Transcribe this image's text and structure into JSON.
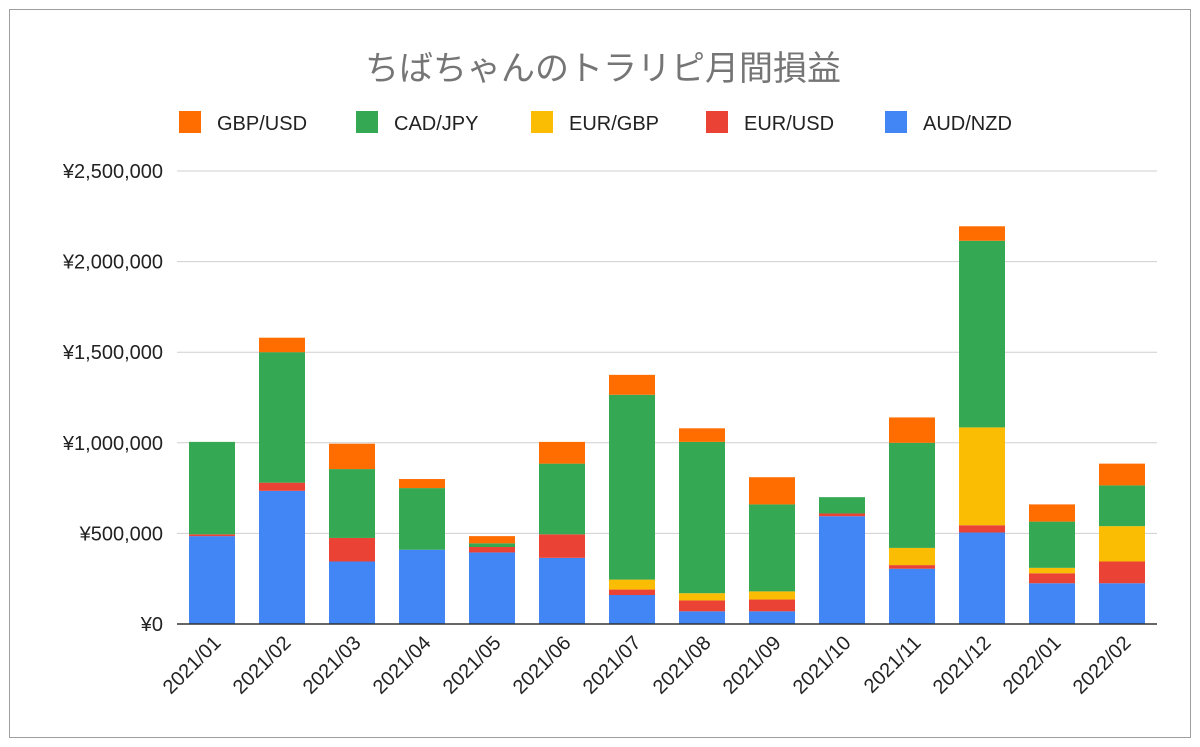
{
  "chart_data": {
    "type": "bar",
    "stacked": true,
    "title": "ちばちゃんのトラリピ月間損益",
    "xlabel": "",
    "ylabel": "",
    "legend_position": "top",
    "grid": true,
    "ylim": [
      0,
      2500000
    ],
    "yticks": [
      0,
      500000,
      1000000,
      1500000,
      2000000,
      2500000
    ],
    "ytick_labels": [
      "¥0",
      "¥500,000",
      "¥1,000,000",
      "¥1,500,000",
      "¥2,000,000",
      "¥2,500,000"
    ],
    "categories": [
      "2021/01",
      "2021/02",
      "2021/03",
      "2021/04",
      "2021/05",
      "2021/06",
      "2021/07",
      "2021/08",
      "2021/09",
      "2021/10",
      "2021/11",
      "2021/12",
      "2022/01",
      "2022/02"
    ],
    "legend_order": [
      "GBP/USD",
      "CAD/JPY",
      "EUR/GBP",
      "EUR/USD",
      "AUD/NZD"
    ],
    "series": [
      {
        "name": "AUD/NZD",
        "color": "#4285F4",
        "values": [
          485000,
          735000,
          345000,
          410000,
          395000,
          365000,
          160000,
          70000,
          70000,
          595000,
          305000,
          505000,
          225000,
          225000
        ]
      },
      {
        "name": "EUR/USD",
        "color": "#EA4335",
        "values": [
          10000,
          45000,
          130000,
          0,
          30000,
          130000,
          30000,
          60000,
          65000,
          15000,
          20000,
          40000,
          55000,
          120000
        ]
      },
      {
        "name": "EUR/GBP",
        "color": "#FBBC04",
        "values": [
          0,
          0,
          0,
          0,
          0,
          0,
          55000,
          40000,
          45000,
          0,
          95000,
          540000,
          30000,
          195000
        ]
      },
      {
        "name": "CAD/JPY",
        "color": "#34A853",
        "values": [
          510000,
          720000,
          380000,
          340000,
          20000,
          390000,
          1020000,
          835000,
          480000,
          90000,
          580000,
          1030000,
          255000,
          225000
        ]
      },
      {
        "name": "GBP/USD",
        "color": "#FF6D01",
        "values": [
          0,
          80000,
          140000,
          50000,
          40000,
          120000,
          110000,
          75000,
          150000,
          0,
          140000,
          80000,
          95000,
          120000
        ]
      }
    ]
  }
}
